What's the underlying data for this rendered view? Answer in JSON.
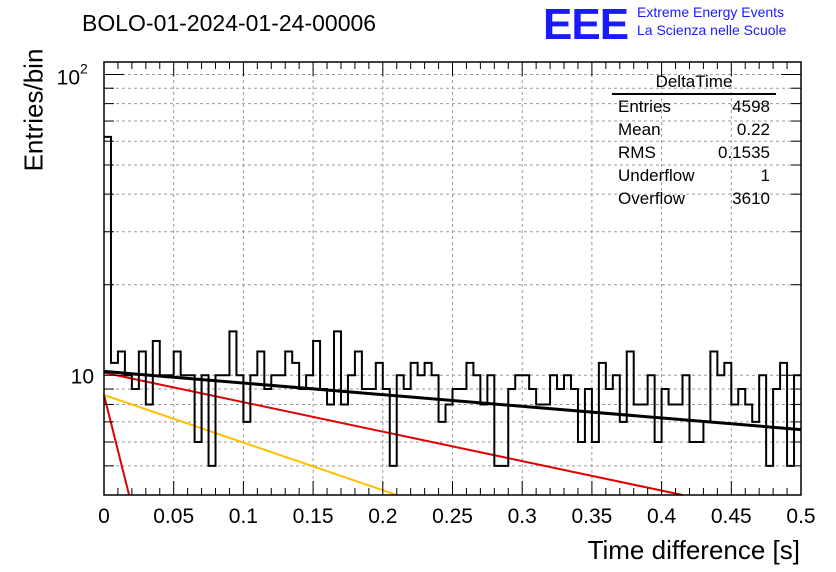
{
  "header": {
    "title": "BOLO-01-2024-01-24-00006",
    "logo_text": "EEE",
    "logo_line1": "Extreme Energy Events",
    "logo_line2": "La Scienza nelle Scuole"
  },
  "stats_box": {
    "title": "DeltaTime",
    "rows": [
      {
        "label": "Entries",
        "value": "4598"
      },
      {
        "label": "Mean",
        "value": "0.22"
      },
      {
        "label": "RMS",
        "value": "0.1535"
      },
      {
        "label": "Underflow",
        "value": "1"
      },
      {
        "label": "Overflow",
        "value": "3610"
      }
    ]
  },
  "colors": {
    "histogram": "#000000",
    "fit_black": "#000000",
    "fit_red": "#e00000",
    "fit_orange": "#ffc000",
    "logo": "#1a1aff"
  },
  "chart_data": {
    "type": "histogram",
    "title": "BOLO-01-2024-01-24-00006",
    "xlabel": "Time difference [s]",
    "ylabel": "Entries/bin",
    "xlim": [
      0,
      0.5
    ],
    "ylim": [
      4,
      110
    ],
    "yscale": "log",
    "grid": true,
    "x_ticks": [
      "0",
      "0.05",
      "0.1",
      "0.15",
      "0.2",
      "0.25",
      "0.3",
      "0.35",
      "0.4",
      "0.45",
      "0.5"
    ],
    "y_ticks": [
      "10",
      "10^2"
    ],
    "bin_width": 0.005,
    "bin_counts": [
      62,
      11,
      12,
      10,
      9,
      12,
      8,
      13,
      10,
      10,
      12,
      10,
      10,
      6,
      10,
      5,
      10,
      10,
      14,
      10,
      7,
      10,
      12,
      9,
      10,
      10,
      12,
      11,
      9,
      10,
      13,
      9,
      8,
      14,
      8,
      10,
      12,
      9,
      9,
      11,
      9,
      5,
      10,
      9,
      11,
      10,
      11,
      10,
      7,
      8,
      9,
      9,
      11,
      10,
      8,
      10,
      5,
      5,
      9,
      10,
      10,
      9,
      8,
      8,
      10,
      9,
      10,
      9,
      6,
      9,
      6,
      11,
      9,
      10,
      7,
      12,
      8,
      8,
      10,
      6,
      9,
      8,
      8,
      10,
      6,
      6,
      7,
      12,
      10,
      11,
      8,
      9,
      8,
      7,
      10,
      5,
      9,
      11,
      5,
      10
    ],
    "fits": [
      {
        "color": "red",
        "points": [
          [
            0,
            8.6
          ],
          [
            0.018,
            4
          ]
        ]
      },
      {
        "color": "orange",
        "points": [
          [
            0,
            8.6
          ],
          [
            0.21,
            4
          ]
        ]
      },
      {
        "color": "red",
        "points": [
          [
            0,
            10.2
          ],
          [
            0.415,
            4
          ]
        ]
      },
      {
        "color": "black",
        "points": [
          [
            0,
            10.3
          ],
          [
            0.5,
            6.6
          ]
        ]
      }
    ]
  }
}
